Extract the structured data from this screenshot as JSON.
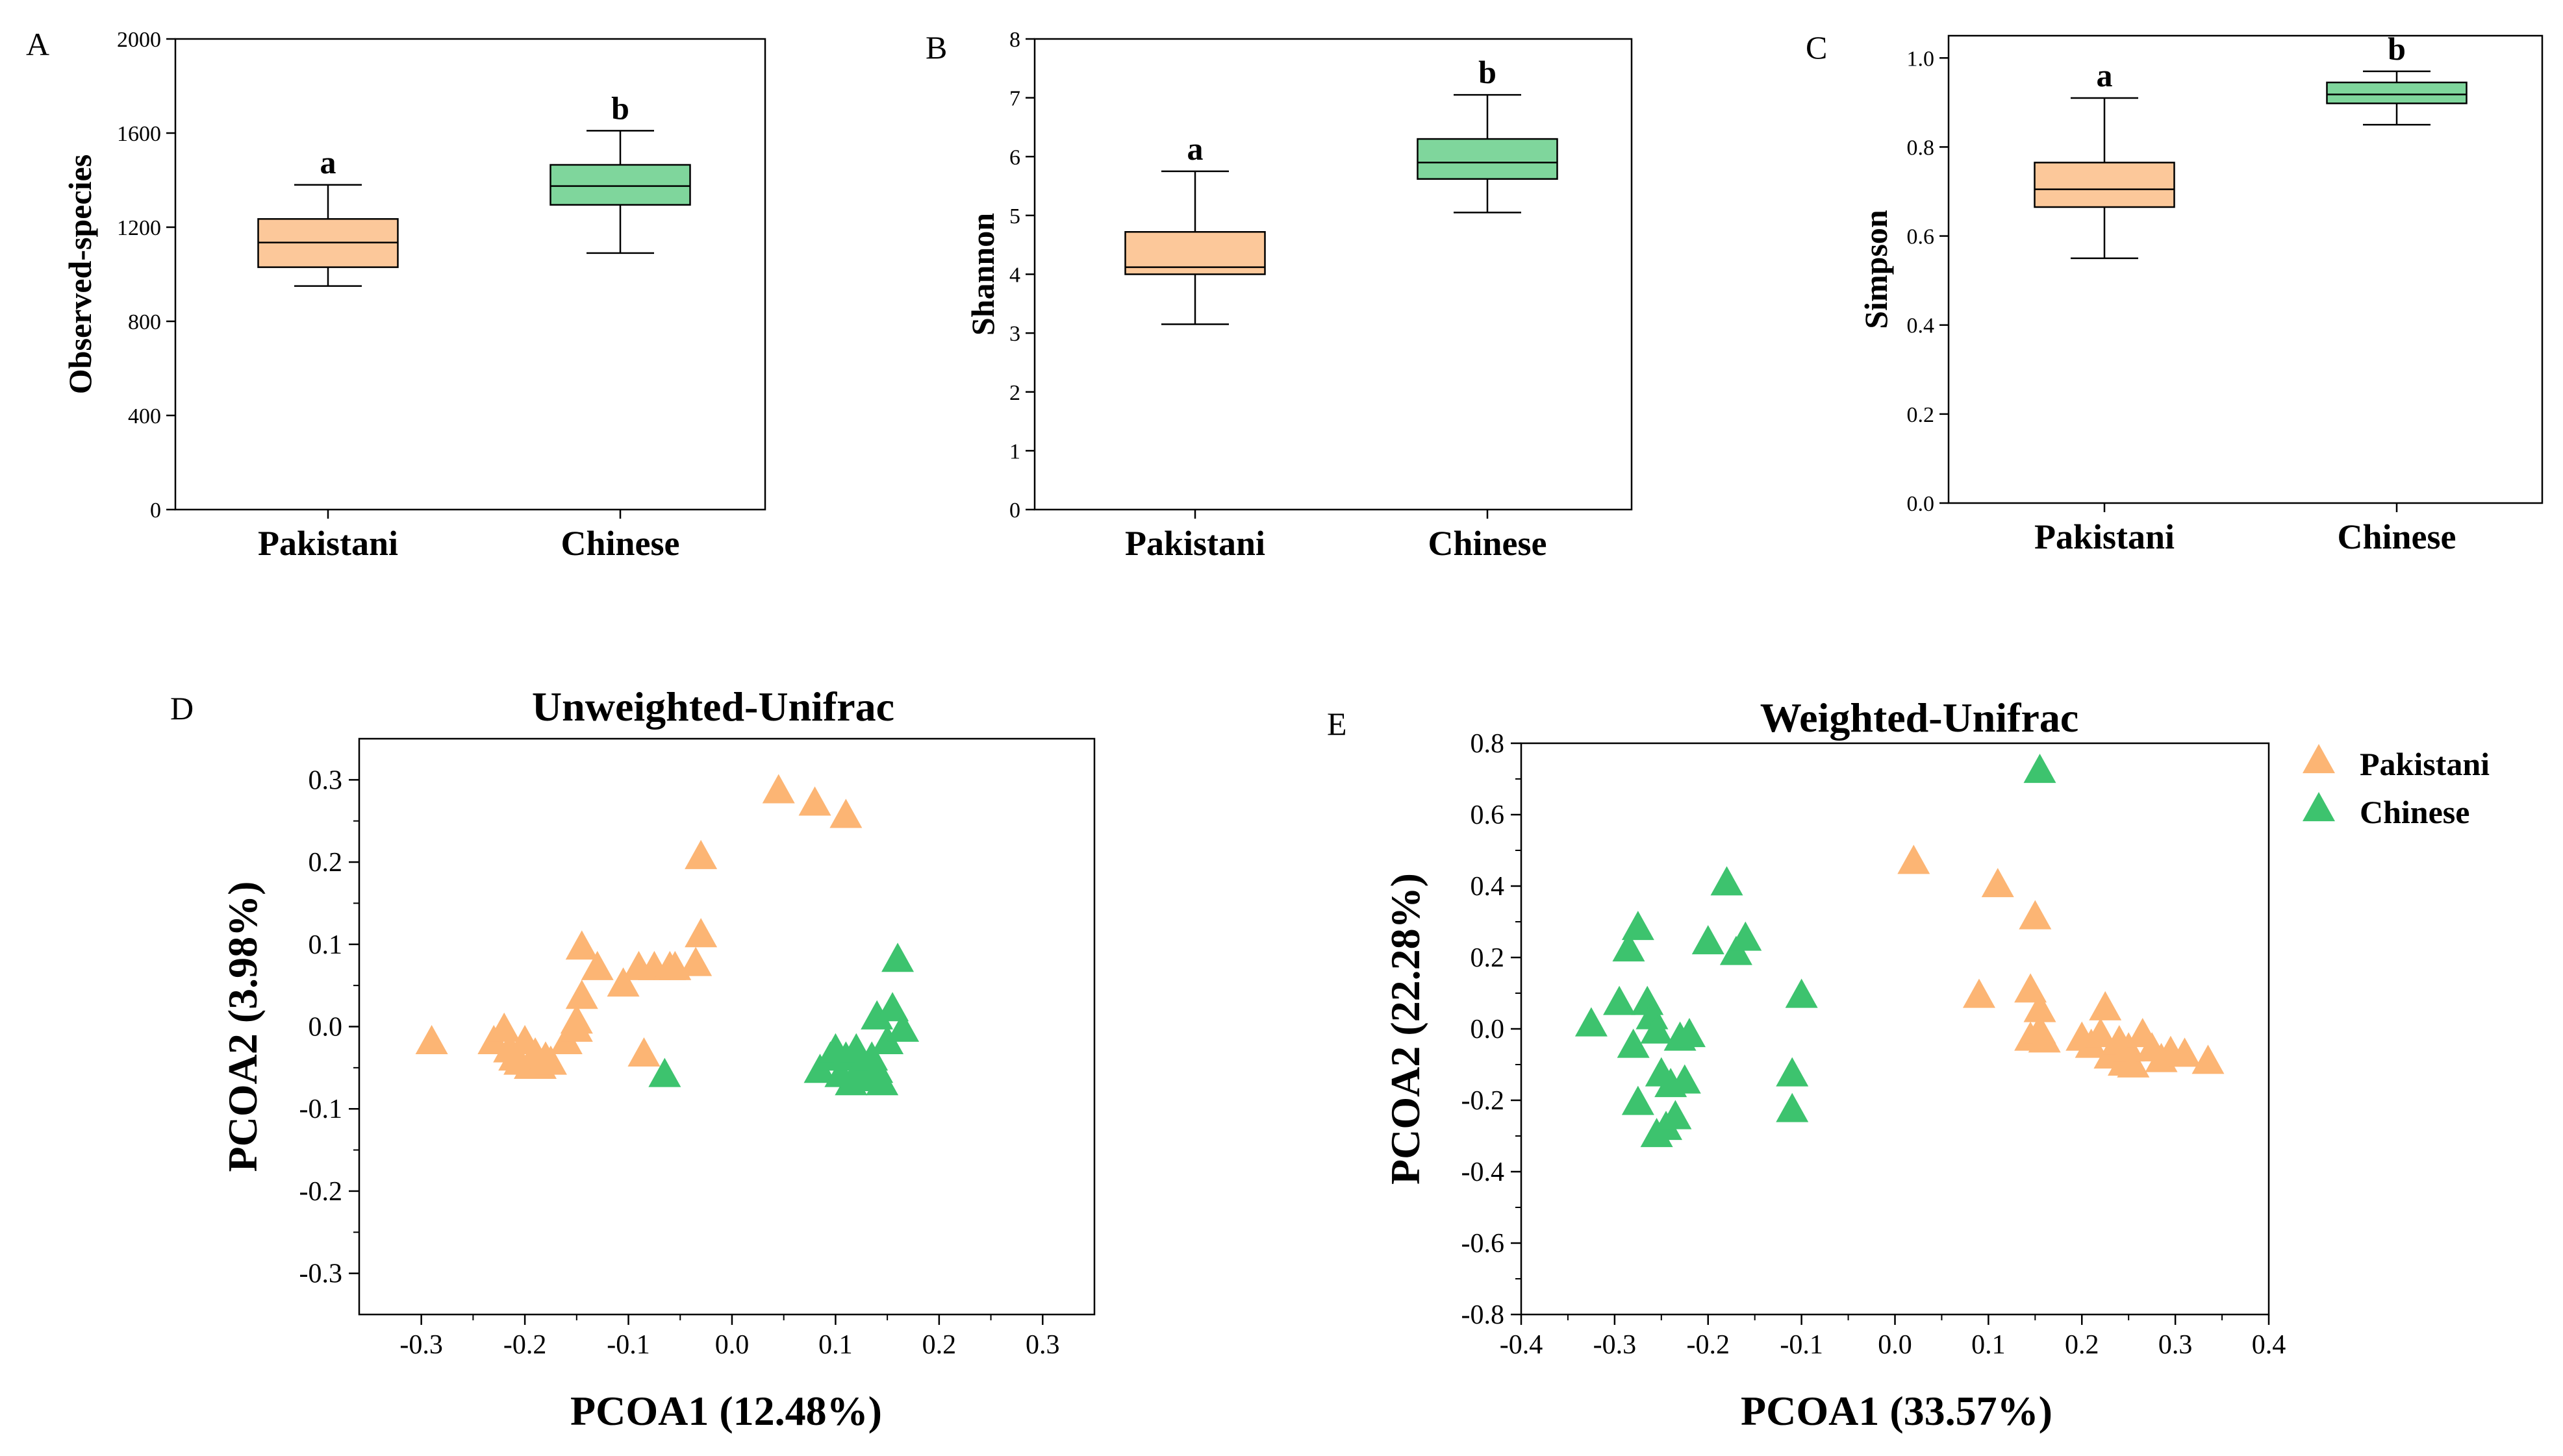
{
  "colors": {
    "pakistani": "#FCB574",
    "pakistani_box": "#FCC89A",
    "chinese": "#3DC36E",
    "chinese_box": "#7FD69C",
    "axis": "#000000"
  },
  "legend": {
    "items": [
      "Pakistani",
      "Chinese"
    ]
  },
  "chart_data": [
    {
      "id": "A",
      "type": "box",
      "panel_label": "A",
      "title": "",
      "ylabel": "Observed-species",
      "xlabel": "",
      "ylim": [
        0,
        2000
      ],
      "yticks": [
        0,
        400,
        800,
        1200,
        1600,
        2000
      ],
      "categories": [
        "Pakistani",
        "Chinese"
      ],
      "boxes": [
        {
          "name": "Pakistani",
          "min": 950,
          "q1": 1030,
          "median": 1135,
          "q3": 1235,
          "max": 1380,
          "letter": "a"
        },
        {
          "name": "Chinese",
          "min": 1090,
          "q1": 1295,
          "median": 1375,
          "q3": 1465,
          "max": 1610,
          "letter": "b"
        }
      ]
    },
    {
      "id": "B",
      "type": "box",
      "panel_label": "B",
      "title": "",
      "ylabel": "Shannon",
      "xlabel": "",
      "ylim": [
        0,
        8
      ],
      "yticks": [
        0,
        1,
        2,
        3,
        4,
        5,
        6,
        7,
        8
      ],
      "categories": [
        "Pakistani",
        "Chinese"
      ],
      "boxes": [
        {
          "name": "Pakistani",
          "min": 3.15,
          "q1": 4.0,
          "median": 4.12,
          "q3": 4.72,
          "max": 5.75,
          "letter": "a"
        },
        {
          "name": "Chinese",
          "min": 5.05,
          "q1": 5.62,
          "median": 5.9,
          "q3": 6.3,
          "max": 7.05,
          "letter": "b"
        }
      ]
    },
    {
      "id": "C",
      "type": "box",
      "panel_label": "C",
      "title": "",
      "ylabel": "Simpson",
      "xlabel": "",
      "ylim": [
        0,
        1.05
      ],
      "yticks": [
        "0.0",
        "0.2",
        "0.4",
        "0.6",
        "0.8",
        "1.0"
      ],
      "categories": [
        "Pakistani",
        "Chinese"
      ],
      "boxes": [
        {
          "name": "Pakistani",
          "min": 0.55,
          "q1": 0.665,
          "median": 0.705,
          "q3": 0.765,
          "max": 0.91,
          "letter": "a"
        },
        {
          "name": "Chinese",
          "min": 0.85,
          "q1": 0.898,
          "median": 0.918,
          "q3": 0.945,
          "max": 0.97,
          "letter": "b"
        }
      ]
    },
    {
      "id": "D",
      "type": "scatter",
      "panel_label": "D",
      "title": "Unweighted-Unifrac",
      "xlabel": "PCOA1 (12.48%)",
      "ylabel": "PCOA2 (3.98%)",
      "xlim": [
        -0.36,
        0.35
      ],
      "ylim": [
        -0.35,
        0.35
      ],
      "xticks": [
        "-0.3",
        "-0.2",
        "-0.1",
        "0.0",
        "0.1",
        "0.2",
        "0.3"
      ],
      "yticks": [
        "-0.3",
        "-0.2",
        "-0.1",
        "0.0",
        "0.1",
        "0.2",
        "0.3"
      ],
      "series": [
        {
          "name": "Pakistani",
          "points": [
            [
              -0.29,
              -0.02
            ],
            [
              -0.23,
              -0.02
            ],
            [
              -0.22,
              -0.005
            ],
            [
              -0.215,
              -0.03
            ],
            [
              -0.21,
              -0.04
            ],
            [
              -0.205,
              -0.045
            ],
            [
              -0.2,
              -0.02
            ],
            [
              -0.195,
              -0.05
            ],
            [
              -0.19,
              -0.035
            ],
            [
              -0.185,
              -0.05
            ],
            [
              -0.18,
              -0.04
            ],
            [
              -0.175,
              -0.045
            ],
            [
              -0.16,
              -0.02
            ],
            [
              -0.15,
              -0.005
            ],
            [
              -0.15,
              0.005
            ],
            [
              -0.145,
              0.035
            ],
            [
              -0.145,
              0.095
            ],
            [
              -0.13,
              0.07
            ],
            [
              -0.105,
              0.05
            ],
            [
              -0.09,
              0.07
            ],
            [
              -0.085,
              -0.035
            ],
            [
              -0.075,
              0.07
            ],
            [
              -0.06,
              0.07
            ],
            [
              -0.055,
              0.07
            ],
            [
              -0.035,
              0.075
            ],
            [
              -0.03,
              0.11
            ],
            [
              -0.03,
              0.205
            ],
            [
              0.045,
              0.285
            ],
            [
              0.08,
              0.27
            ],
            [
              0.11,
              0.255
            ]
          ]
        },
        {
          "name": "Chinese",
          "points": [
            [
              -0.065,
              -0.06
            ],
            [
              0.085,
              -0.055
            ],
            [
              0.095,
              -0.04
            ],
            [
              0.1,
              -0.03
            ],
            [
              0.105,
              -0.06
            ],
            [
              0.11,
              -0.04
            ],
            [
              0.115,
              -0.07
            ],
            [
              0.12,
              -0.03
            ],
            [
              0.125,
              -0.05
            ],
            [
              0.13,
              -0.065
            ],
            [
              0.135,
              -0.04
            ],
            [
              0.14,
              -0.055
            ],
            [
              0.145,
              -0.07
            ],
            [
              0.14,
              0.01
            ],
            [
              0.15,
              -0.02
            ],
            [
              0.155,
              0.02
            ],
            [
              0.16,
              0.08
            ],
            [
              0.165,
              -0.005
            ]
          ]
        }
      ]
    },
    {
      "id": "E",
      "type": "scatter",
      "panel_label": "E",
      "title": "Weighted-Unifrac",
      "xlabel": "PCOA1 (33.57%)",
      "ylabel": "PCOA2 (22.28%)",
      "xlim": [
        -0.4,
        0.4
      ],
      "ylim": [
        -0.8,
        0.8
      ],
      "xticks": [
        "-0.4",
        "-0.3",
        "-0.2",
        "-0.1",
        "0.0",
        "0.1",
        "0.2",
        "0.3",
        "0.4"
      ],
      "yticks": [
        "-0.8",
        "-0.6",
        "-0.4",
        "-0.2",
        "0.0",
        "0.2",
        "0.4",
        "0.6",
        "0.8"
      ],
      "series": [
        {
          "name": "Pakistani",
          "points": [
            [
              0.02,
              0.465
            ],
            [
              0.09,
              0.09
            ],
            [
              0.11,
              0.4
            ],
            [
              0.145,
              0.105
            ],
            [
              0.15,
              0.31
            ],
            [
              0.145,
              -0.03
            ],
            [
              0.155,
              0.05
            ],
            [
              0.155,
              -0.01
            ],
            [
              0.16,
              -0.035
            ],
            [
              0.2,
              -0.03
            ],
            [
              0.21,
              -0.05
            ],
            [
              0.22,
              -0.02
            ],
            [
              0.225,
              0.055
            ],
            [
              0.23,
              -0.08
            ],
            [
              0.24,
              -0.04
            ],
            [
              0.245,
              -0.1
            ],
            [
              0.25,
              -0.06
            ],
            [
              0.255,
              -0.105
            ],
            [
              0.265,
              -0.02
            ],
            [
              0.275,
              -0.06
            ],
            [
              0.285,
              -0.09
            ],
            [
              0.295,
              -0.07
            ],
            [
              0.31,
              -0.075
            ],
            [
              0.335,
              -0.095
            ]
          ]
        },
        {
          "name": "Chinese",
          "points": [
            [
              -0.325,
              0.01
            ],
            [
              -0.295,
              0.07
            ],
            [
              -0.285,
              0.22
            ],
            [
              -0.28,
              -0.05
            ],
            [
              -0.275,
              0.28
            ],
            [
              -0.275,
              -0.21
            ],
            [
              -0.265,
              0.07
            ],
            [
              -0.26,
              0.03
            ],
            [
              -0.255,
              -0.01
            ],
            [
              -0.255,
              -0.3
            ],
            [
              -0.25,
              -0.13
            ],
            [
              -0.245,
              -0.28
            ],
            [
              -0.24,
              -0.16
            ],
            [
              -0.235,
              -0.25
            ],
            [
              -0.23,
              -0.03
            ],
            [
              -0.225,
              -0.15
            ],
            [
              -0.22,
              -0.02
            ],
            [
              -0.2,
              0.24
            ],
            [
              -0.18,
              0.405
            ],
            [
              -0.17,
              0.21
            ],
            [
              -0.16,
              0.25
            ],
            [
              -0.11,
              -0.13
            ],
            [
              -0.11,
              -0.23
            ],
            [
              -0.1,
              0.09
            ],
            [
              0.155,
              0.72
            ]
          ]
        }
      ]
    }
  ]
}
